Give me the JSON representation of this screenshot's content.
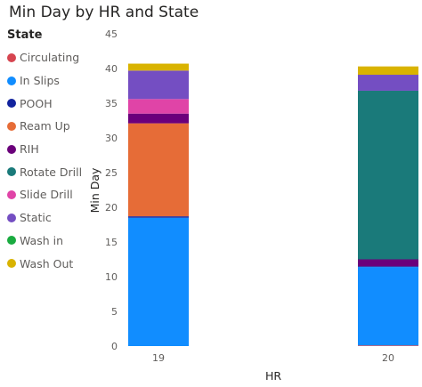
{
  "chart_data": {
    "type": "bar",
    "stacked": true,
    "title": "Min Day by HR and State",
    "xlabel": "HR",
    "ylabel": "Min Day",
    "ylim": [
      0,
      45
    ],
    "yticks": [
      0,
      5,
      10,
      15,
      20,
      25,
      30,
      35,
      40,
      45
    ],
    "grid": false,
    "legend_title": "State",
    "legend_position": "left",
    "categories": [
      "19",
      "20"
    ],
    "series": [
      {
        "name": "Circulating",
        "color": "#D64550",
        "values": [
          0,
          0.1
        ]
      },
      {
        "name": "In Slips",
        "color": "#118DFF",
        "values": [
          18.5,
          11.3
        ]
      },
      {
        "name": "POOH",
        "color": "#12239E",
        "values": [
          0.2,
          0.1
        ]
      },
      {
        "name": "Ream Up",
        "color": "#E66C37",
        "values": [
          13.4,
          0
        ]
      },
      {
        "name": "RIH",
        "color": "#6B007B",
        "values": [
          1.4,
          1.0
        ]
      },
      {
        "name": "Rotate Drill",
        "color": "#1A7A7A",
        "values": [
          0,
          24.3
        ]
      },
      {
        "name": "Slide Drill",
        "color": "#E044A7",
        "values": [
          2.1,
          0
        ]
      },
      {
        "name": "Static",
        "color": "#744EC2",
        "values": [
          4.1,
          2.3
        ]
      },
      {
        "name": "Wash in",
        "color": "#1AAB40",
        "values": [
          0,
          0
        ]
      },
      {
        "name": "Wash Out",
        "color": "#D9B300",
        "values": [
          1.0,
          1.2
        ]
      }
    ]
  }
}
